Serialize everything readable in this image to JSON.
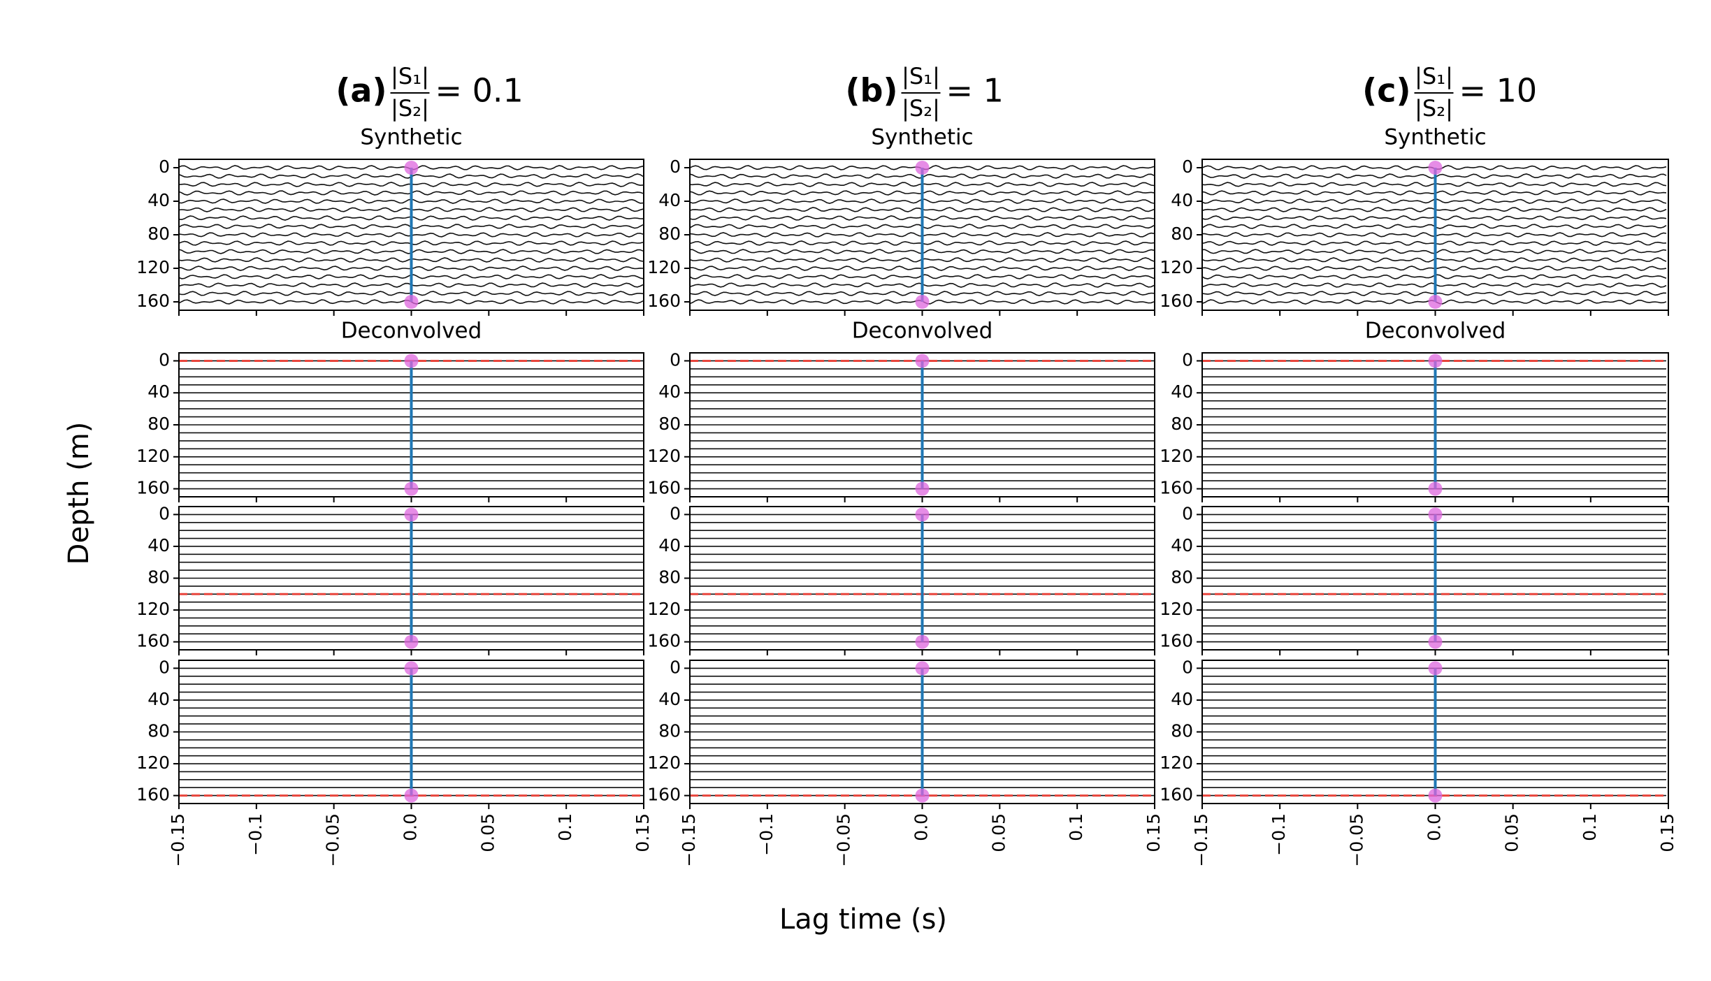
{
  "figure": {
    "xlabel": "Lag time (s)",
    "ylabel": "Depth (m)",
    "columns": [
      {
        "label": "(a)",
        "numerator": "|S₁|",
        "denominator": "|S₂|",
        "equals": "= 0.1"
      },
      {
        "label": "(b)",
        "numerator": "|S₁|",
        "denominator": "|S₂|",
        "equals": "= 1"
      },
      {
        "label": "(c)",
        "numerator": "|S₁|",
        "denominator": "|S₂|",
        "equals": "= 10"
      }
    ]
  },
  "chart_data": [
    {
      "type": "wiggle",
      "title": "Synthetic",
      "xlim": [
        -0.15,
        0.15
      ],
      "xticks": [
        -0.15,
        -0.1,
        -0.05,
        0,
        0.05,
        0.1,
        0.15
      ],
      "ylim": [
        170,
        -10
      ],
      "yticks": [
        0,
        40,
        80,
        120,
        160
      ],
      "reference_x": 0,
      "reference_color": "#1f77b4",
      "markers": {
        "x": [
          0,
          0
        ],
        "y": [
          0,
          160
        ],
        "color": "#dd66dd"
      }
    },
    {
      "type": "wiggle",
      "title": "Synthetic",
      "xlim": [
        -0.15,
        0.15
      ],
      "xticks": [
        -0.15,
        -0.1,
        -0.05,
        0,
        0.05,
        0.1,
        0.15
      ],
      "ylim": [
        170,
        -10
      ],
      "yticks": [
        0,
        40,
        80,
        120,
        160
      ],
      "reference_x": 0,
      "reference_color": "#1f77b4",
      "markers": {
        "x": [
          0,
          0
        ],
        "y": [
          0,
          160
        ],
        "color": "#dd66dd"
      }
    },
    {
      "type": "wiggle",
      "title": "Synthetic",
      "xlim": [
        -0.15,
        0.15
      ],
      "xticks": [
        -0.15,
        -0.1,
        -0.05,
        0,
        0.05,
        0.1,
        0.15
      ],
      "ylim": [
        170,
        -10
      ],
      "yticks": [
        0,
        40,
        80,
        120,
        160
      ],
      "reference_x": 0,
      "reference_color": "#1f77b4",
      "markers": {
        "x": [
          0,
          0
        ],
        "y": [
          0,
          160
        ],
        "color": "#dd66dd"
      }
    },
    {
      "type": "wiggle",
      "title": "Deconvolved",
      "xlim": [
        -0.15,
        0.15
      ],
      "xticks": [
        -0.15,
        -0.1,
        -0.05,
        0,
        0.05,
        0.1,
        0.15
      ],
      "ylim": [
        170,
        -10
      ],
      "yticks": [
        0,
        40,
        80,
        120,
        160
      ],
      "reference_x": 0,
      "reference_color": "#1f77b4",
      "markers": {
        "x": [
          0,
          0
        ],
        "y": [
          0,
          160
        ],
        "color": "#dd66dd"
      },
      "source_depth": 0,
      "source_color": "#e8453c"
    },
    {
      "type": "wiggle",
      "title": "Deconvolved",
      "xlim": [
        -0.15,
        0.15
      ],
      "xticks": [
        -0.15,
        -0.1,
        -0.05,
        0,
        0.05,
        0.1,
        0.15
      ],
      "ylim": [
        170,
        -10
      ],
      "yticks": [
        0,
        40,
        80,
        120,
        160
      ],
      "reference_x": 0,
      "reference_color": "#1f77b4",
      "markers": {
        "x": [
          0,
          0
        ],
        "y": [
          0,
          160
        ],
        "color": "#dd66dd"
      },
      "source_depth": 0,
      "source_color": "#e8453c"
    },
    {
      "type": "wiggle",
      "title": "Deconvolved",
      "xlim": [
        -0.15,
        0.15
      ],
      "xticks": [
        -0.15,
        -0.1,
        -0.05,
        0,
        0.05,
        0.1,
        0.15
      ],
      "ylim": [
        170,
        -10
      ],
      "yticks": [
        0,
        40,
        80,
        120,
        160
      ],
      "reference_x": 0,
      "reference_color": "#1f77b4",
      "markers": {
        "x": [
          0,
          0
        ],
        "y": [
          0,
          160
        ],
        "color": "#dd66dd"
      },
      "source_depth": 0,
      "source_color": "#e8453c"
    },
    {
      "type": "wiggle",
      "xlim": [
        -0.15,
        0.15
      ],
      "xticks": [
        -0.15,
        -0.1,
        -0.05,
        0,
        0.05,
        0.1,
        0.15
      ],
      "ylim": [
        170,
        -10
      ],
      "yticks": [
        0,
        40,
        80,
        120,
        160
      ],
      "reference_x": 0,
      "reference_color": "#1f77b4",
      "markers": {
        "x": [
          0,
          0
        ],
        "y": [
          0,
          160
        ],
        "color": "#dd66dd"
      },
      "source_depth": 100,
      "source_color": "#e8453c"
    },
    {
      "type": "wiggle",
      "xlim": [
        -0.15,
        0.15
      ],
      "xticks": [
        -0.15,
        -0.1,
        -0.05,
        0,
        0.05,
        0.1,
        0.15
      ],
      "ylim": [
        170,
        -10
      ],
      "yticks": [
        0,
        40,
        80,
        120,
        160
      ],
      "reference_x": 0,
      "reference_color": "#1f77b4",
      "markers": {
        "x": [
          0,
          0
        ],
        "y": [
          0,
          160
        ],
        "color": "#dd66dd"
      },
      "source_depth": 100,
      "source_color": "#e8453c"
    },
    {
      "type": "wiggle",
      "xlim": [
        -0.15,
        0.15
      ],
      "xticks": [
        -0.15,
        -0.1,
        -0.05,
        0,
        0.05,
        0.1,
        0.15
      ],
      "ylim": [
        170,
        -10
      ],
      "yticks": [
        0,
        40,
        80,
        120,
        160
      ],
      "reference_x": 0,
      "reference_color": "#1f77b4",
      "markers": {
        "x": [
          0,
          0
        ],
        "y": [
          0,
          160
        ],
        "color": "#dd66dd"
      },
      "source_depth": 100,
      "source_color": "#e8453c"
    },
    {
      "type": "wiggle",
      "xlim": [
        -0.15,
        0.15
      ],
      "xticks": [
        {
          "value": -0.15,
          "label": "−0.15"
        },
        {
          "value": -0.1,
          "label": "−0.1"
        },
        {
          "value": -0.05,
          "label": "−0.05"
        },
        {
          "value": 0,
          "label": "0.0"
        },
        0.05,
        0.1,
        0.15
      ],
      "ylim": [
        170,
        -10
      ],
      "yticks": [
        0,
        40,
        80,
        120,
        160
      ],
      "reference_x": 0,
      "reference_color": "#1f77b4",
      "markers": {
        "x": [
          0,
          0
        ],
        "y": [
          0,
          160
        ],
        "color": "#dd66dd"
      },
      "source_depth": 160,
      "source_color": "#e8453c"
    },
    {
      "type": "wiggle",
      "xlim": [
        -0.15,
        0.15
      ],
      "xticks": [
        {
          "value": -0.15,
          "label": "−0.15"
        },
        {
          "value": -0.1,
          "label": "−0.1"
        },
        {
          "value": -0.05,
          "label": "−0.05"
        },
        {
          "value": 0,
          "label": "0.0"
        },
        0.05,
        0.1,
        0.15
      ],
      "ylim": [
        170,
        -10
      ],
      "yticks": [
        0,
        40,
        80,
        120,
        160
      ],
      "reference_x": 0,
      "reference_color": "#1f77b4",
      "markers": {
        "x": [
          0,
          0
        ],
        "y": [
          0,
          160
        ],
        "color": "#dd66dd"
      },
      "source_depth": 160,
      "source_color": "#e8453c"
    },
    {
      "type": "wiggle",
      "xlim": [
        -0.15,
        0.15
      ],
      "xticks": [
        {
          "value": -0.15,
          "label": "−0.15"
        },
        {
          "value": -0.1,
          "label": "−0.1"
        },
        {
          "value": -0.05,
          "label": "−0.05"
        },
        {
          "value": 0,
          "label": "0.0"
        },
        0.05,
        0.1,
        0.15
      ],
      "ylim": [
        170,
        -10
      ],
      "yticks": [
        0,
        40,
        80,
        120,
        160
      ],
      "reference_x": 0,
      "reference_color": "#1f77b4",
      "markers": {
        "x": [
          0,
          0
        ],
        "y": [
          0,
          160
        ],
        "color": "#dd66dd"
      },
      "source_depth": 160,
      "source_color": "#e8453c"
    }
  ]
}
